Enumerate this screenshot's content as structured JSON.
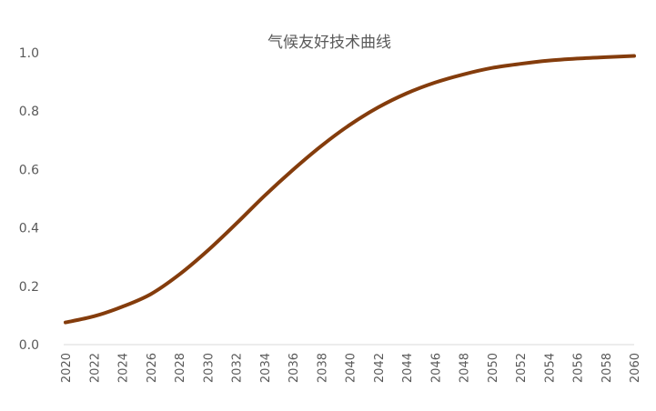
{
  "chart_data": {
    "type": "line",
    "title": "气候友好技术曲线",
    "xlabel": "",
    "ylabel": "",
    "x": [
      2020,
      2022,
      2024,
      2026,
      2028,
      2030,
      2032,
      2034,
      2036,
      2038,
      2040,
      2042,
      2044,
      2046,
      2048,
      2050,
      2052,
      2054,
      2056,
      2058,
      2060
    ],
    "x_tick_labels": [
      "2020",
      "2022",
      "2024",
      "2026",
      "2028",
      "2030",
      "2032",
      "2034",
      "2036",
      "2038",
      "2040",
      "2042",
      "2044",
      "2046",
      "2048",
      "2050",
      "2052",
      "2054",
      "2056",
      "2058",
      "2060"
    ],
    "y_tick_labels": [
      "0.0",
      "0.2",
      "0.4",
      "0.6",
      "0.8",
      "1.0"
    ],
    "ylim": [
      0,
      1.0
    ],
    "grid": false,
    "legend": "none",
    "series": [
      {
        "color": "#843c0c",
        "values": [
          0.076,
          0.097,
          0.13,
          0.173,
          0.24,
          0.322,
          0.414,
          0.51,
          0.599,
          0.681,
          0.753,
          0.813,
          0.861,
          0.898,
          0.926,
          0.948,
          0.962,
          0.973,
          0.98,
          0.985,
          0.989
        ]
      }
    ]
  }
}
